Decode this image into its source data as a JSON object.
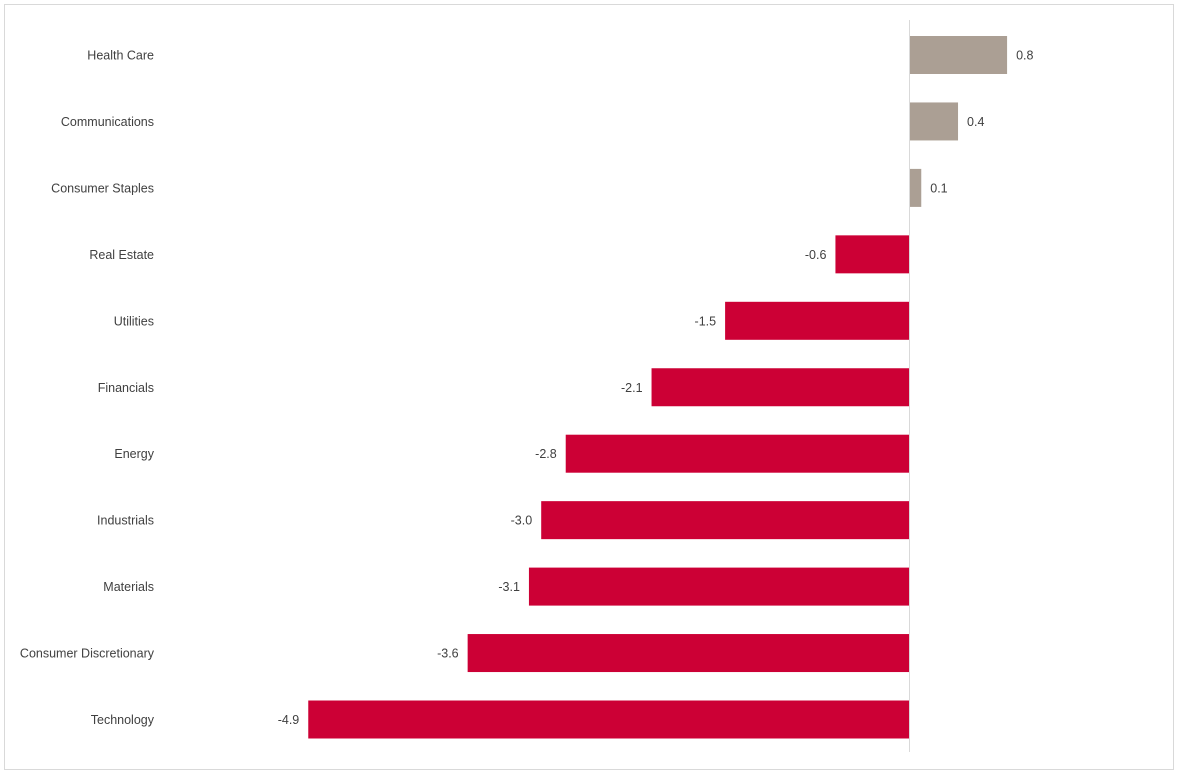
{
  "chart_data": {
    "type": "bar",
    "orientation": "horizontal",
    "categories": [
      "Health Care",
      "Communications",
      "Consumer Staples",
      "Real Estate",
      "Utilities",
      "Financials",
      "Energy",
      "Industrials",
      "Materials",
      "Consumer Discretionary",
      "Technology"
    ],
    "values": [
      0.8,
      0.4,
      0.1,
      -0.6,
      -1.5,
      -2.1,
      -2.8,
      -3.0,
      -3.1,
      -3.6,
      -4.9
    ],
    "value_labels": [
      "0.8",
      "0.4",
      "0.1",
      "-0.6",
      "-1.5",
      "-2.1",
      "-2.8",
      "-3.0",
      "-3.1",
      "-3.6",
      "-4.9"
    ],
    "xlim": [
      -5.0,
      1.1
    ],
    "grid": false,
    "legend": false,
    "colors": {
      "positive": "#ab9f94",
      "negative": "#cc0035",
      "axis": "#d9d9d9",
      "text": "#404040"
    }
  }
}
